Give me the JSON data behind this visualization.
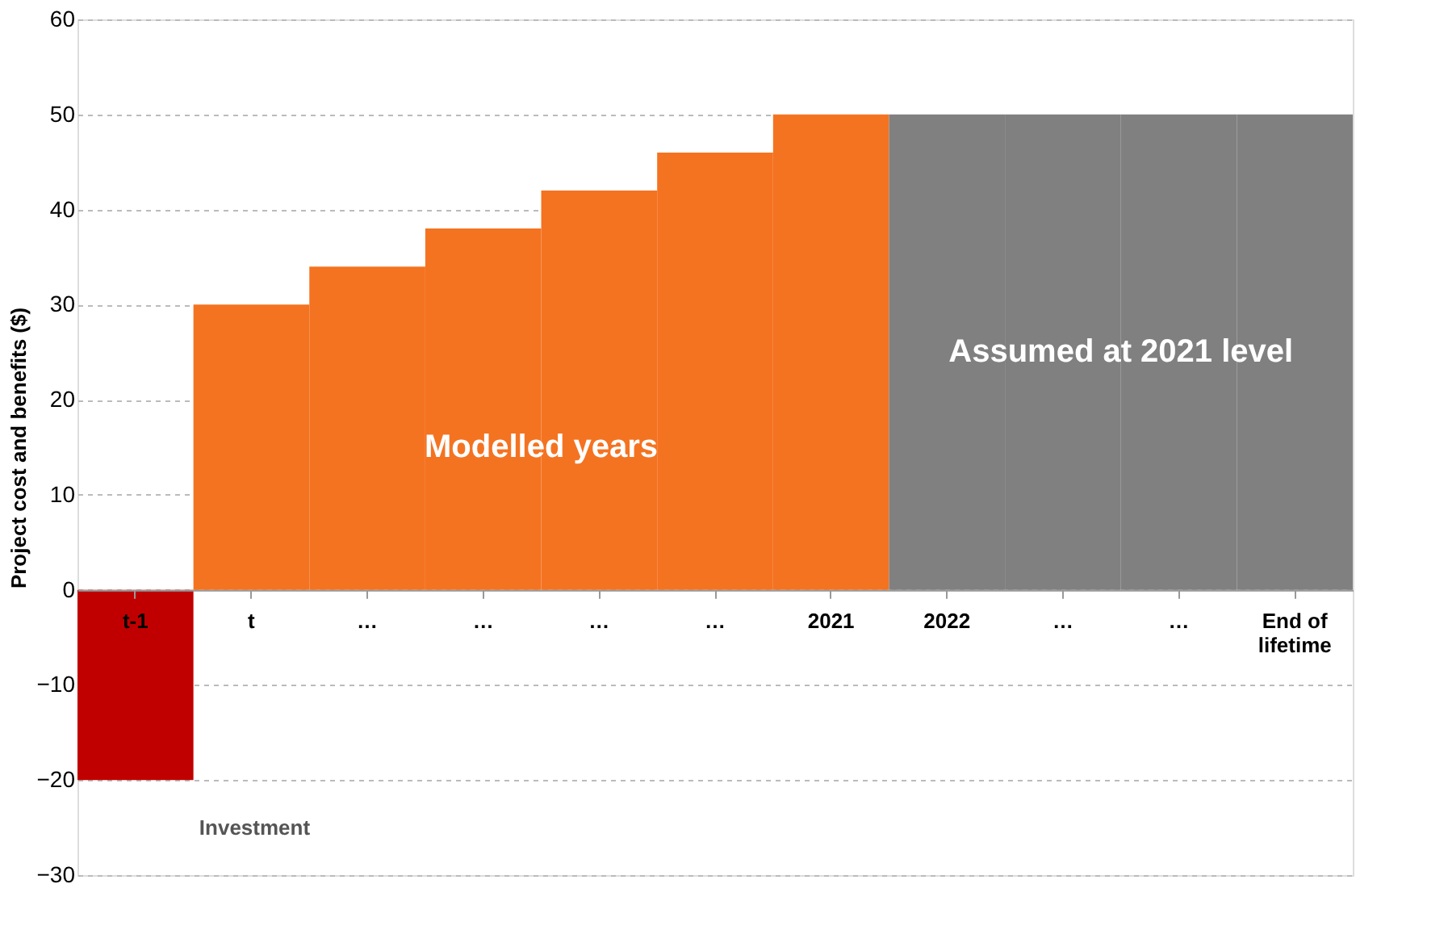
{
  "chart_data": {
    "type": "bar",
    "ylabel": "Project cost and benefits ($)",
    "categories": [
      "t-1",
      "t",
      "…",
      "…",
      "…",
      "…",
      "2021",
      "2022",
      "…",
      "…",
      "End of lifetime"
    ],
    "values": [
      -20,
      30,
      34,
      38,
      42,
      46,
      50,
      50,
      50,
      50,
      50
    ],
    "colors": [
      "#c00000",
      "#f47321",
      "#f47321",
      "#f47321",
      "#f47321",
      "#f47321",
      "#f47321",
      "#808080",
      "#808080",
      "#808080",
      "#808080"
    ],
    "ylim": [
      -30,
      60
    ],
    "yticks": [
      -30,
      -20,
      -10,
      0,
      10,
      20,
      30,
      40,
      50,
      60
    ],
    "grid": "y",
    "annotations": [
      "Investment",
      "Modelled years",
      "Assumed at 2021 level"
    ]
  }
}
